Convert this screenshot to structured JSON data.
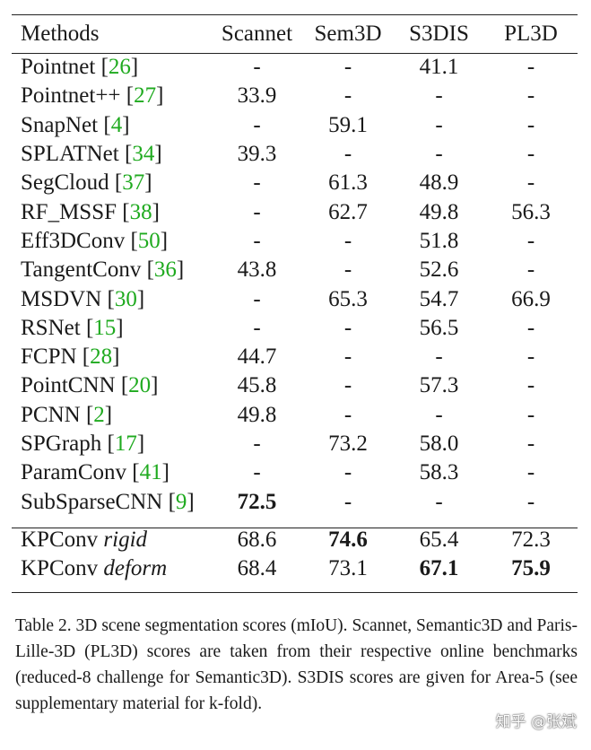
{
  "headers": [
    "Methods",
    "Scannet",
    "Sem3D",
    "S3DIS",
    "PL3D"
  ],
  "rows": [
    {
      "name": "Pointnet",
      "ref": "26",
      "v": [
        "-",
        "-",
        "41.1",
        "-"
      ]
    },
    {
      "name": "Pointnet++",
      "ref": "27",
      "v": [
        "33.9",
        "-",
        "-",
        "-"
      ]
    },
    {
      "name": "SnapNet",
      "ref": "4",
      "v": [
        "-",
        "59.1",
        "-",
        "-"
      ]
    },
    {
      "name": "SPLATNet",
      "ref": "34",
      "v": [
        "39.3",
        "-",
        "-",
        "-"
      ]
    },
    {
      "name": "SegCloud",
      "ref": "37",
      "v": [
        "-",
        "61.3",
        "48.9",
        "-"
      ]
    },
    {
      "name": "RF_MSSF",
      "ref": "38",
      "v": [
        "-",
        "62.7",
        "49.8",
        "56.3"
      ]
    },
    {
      "name": "Eff3DConv",
      "ref": "50",
      "v": [
        "-",
        "-",
        "51.8",
        "-"
      ]
    },
    {
      "name": "TangentConv",
      "ref": "36",
      "v": [
        "43.8",
        "-",
        "52.6",
        "-"
      ]
    },
    {
      "name": "MSDVN",
      "ref": "30",
      "v": [
        "-",
        "65.3",
        "54.7",
        "66.9"
      ]
    },
    {
      "name": "RSNet",
      "ref": "15",
      "v": [
        "-",
        "-",
        "56.5",
        "-"
      ]
    },
    {
      "name": "FCPN",
      "ref": "28",
      "v": [
        "44.7",
        "-",
        "-",
        "-"
      ]
    },
    {
      "name": "PointCNN",
      "ref": "20",
      "v": [
        "45.8",
        "-",
        "57.3",
        "-"
      ]
    },
    {
      "name": "PCNN",
      "ref": "2",
      "v": [
        "49.8",
        "-",
        "-",
        "-"
      ]
    },
    {
      "name": "SPGraph",
      "ref": "17",
      "v": [
        "-",
        "73.2",
        "58.0",
        "-"
      ]
    },
    {
      "name": "ParamConv",
      "ref": "41",
      "v": [
        "-",
        "-",
        "58.3",
        "-"
      ]
    },
    {
      "name": "SubSparseCNN",
      "ref": "9",
      "v": [
        "72.5",
        "-",
        "-",
        "-"
      ]
    }
  ],
  "kpconv": [
    {
      "name": "KPConv",
      "variant": "rigid",
      "v": [
        "68.6",
        "74.6",
        "65.4",
        "72.3"
      ]
    },
    {
      "name": "KPConv",
      "variant": "deform",
      "v": [
        "68.4",
        "73.1",
        "67.1",
        "75.9"
      ]
    }
  ],
  "caption": "Table 2. 3D scene segmentation scores (mIoU). Scannet, Semantic3D and Paris-Lille-3D (PL3D) scores are taken from their respective online benchmarks (reduced-8 challenge for Semantic3D). S3DIS scores are given for Area-5 (see supplementary material for k-fold).",
  "watermark": "知乎 @张斌"
}
